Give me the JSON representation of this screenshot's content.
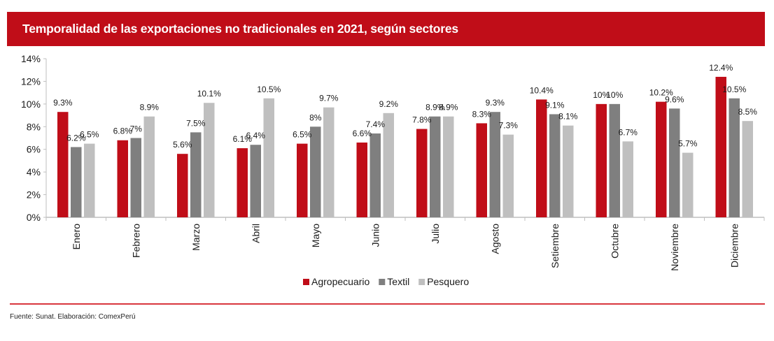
{
  "header": {
    "title": "Temporalidad de las exportaciones no tradicionales en 2021, según sectores",
    "background": "#c00d18"
  },
  "footer": {
    "source": "Fuente: Sunat. Elaboración: ComexPerú",
    "rule_color": "#d9363e"
  },
  "chart_data": {
    "type": "bar",
    "title": "Temporalidad de las exportaciones no tradicionales en 2021, según sectores",
    "xlabel": "",
    "ylabel": "",
    "ylim": [
      0,
      14
    ],
    "yticks": [
      0,
      2,
      4,
      6,
      8,
      10,
      12,
      14
    ],
    "ytick_labels": [
      "0%",
      "2%",
      "4%",
      "6%",
      "8%",
      "10%",
      "12%",
      "14%"
    ],
    "grid": false,
    "legend_position": "bottom",
    "categories": [
      "Enero",
      "Febrero",
      "Marzo",
      "Abril",
      "Mayo",
      "Junio",
      "Julio",
      "Agosto",
      "Setiembre",
      "Octubre",
      "Noviembre",
      "Diciembre"
    ],
    "series": [
      {
        "name": "Agropecuario",
        "color": "#c00d18",
        "values": [
          9.3,
          6.8,
          5.6,
          6.1,
          6.5,
          6.6,
          7.8,
          8.3,
          10.4,
          10,
          10.2,
          12.4
        ],
        "labels": [
          "9.3%",
          "6.8%",
          "5.6%",
          "6.1%",
          "6.5%",
          "6.6%",
          "7.8%",
          "8.3%",
          "10.4%",
          "10%",
          "10.2%",
          "12.4%"
        ]
      },
      {
        "name": "Textil",
        "color": "#7f7f7f",
        "values": [
          6.2,
          7,
          7.5,
          6.4,
          8,
          7.4,
          8.9,
          9.3,
          9.1,
          10,
          9.6,
          10.5
        ],
        "labels": [
          "6.2%",
          "7%",
          "7.5%",
          "6.4%",
          "8%",
          "7.4%",
          "8.9%",
          "9.3%",
          "9.1%",
          "10%",
          "9.6%",
          "10.5%"
        ]
      },
      {
        "name": "Pesquero",
        "color": "#bfbfbf",
        "values": [
          6.5,
          8.9,
          10.1,
          10.5,
          9.7,
          9.2,
          8.9,
          7.3,
          8.1,
          6.7,
          5.7,
          8.5
        ],
        "labels": [
          "6.5%",
          "8.9%",
          "10.1%",
          "10.5%",
          "9.7%",
          "9.2%",
          "8.9%",
          "7.3%",
          "8.1%",
          "6.7%",
          "5.7%",
          "8.5%"
        ]
      }
    ]
  }
}
